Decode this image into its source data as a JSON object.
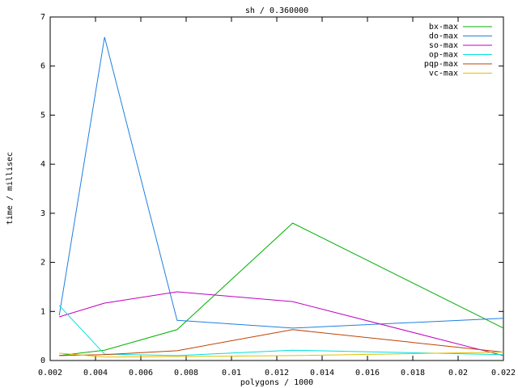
{
  "chart_data": {
    "type": "line",
    "title": "sh / 0.360000",
    "x_label": "polygons / 1000",
    "y_label": "time / millisec",
    "x": [
      0.0024,
      0.0044,
      0.0076,
      0.0127,
      0.022
    ],
    "series": [
      {
        "name": "bx-max",
        "color": "#00b000",
        "values": [
          0.1,
          0.21,
          0.63,
          2.8,
          0.66
        ]
      },
      {
        "name": "do-max",
        "color": "#1f7fdf",
        "values": [
          0.92,
          6.59,
          0.82,
          0.66,
          0.86
        ]
      },
      {
        "name": "so-max",
        "color": "#c000c0",
        "values": [
          0.89,
          1.17,
          1.4,
          1.2,
          0.1
        ]
      },
      {
        "name": "op-max",
        "color": "#00e0e0",
        "values": [
          1.12,
          0.13,
          0.1,
          0.21,
          0.12
        ]
      },
      {
        "name": "pqp-max",
        "color": "#c04000",
        "values": [
          0.1,
          0.12,
          0.2,
          0.63,
          0.17
        ]
      },
      {
        "name": "vc-max",
        "color": "#e0c000",
        "values": [
          0.15,
          0.07,
          0.08,
          0.1,
          0.17
        ]
      }
    ],
    "xlim": [
      0.002,
      0.022
    ],
    "xticks": [
      0.002,
      0.004,
      0.006,
      0.008,
      0.01,
      0.012,
      0.014,
      0.016,
      0.018,
      0.02,
      0.022
    ],
    "ylim": [
      0,
      7
    ],
    "yticks": [
      0,
      1,
      2,
      3,
      4,
      5,
      6,
      7
    ],
    "legend": "top-right",
    "grid": false
  }
}
